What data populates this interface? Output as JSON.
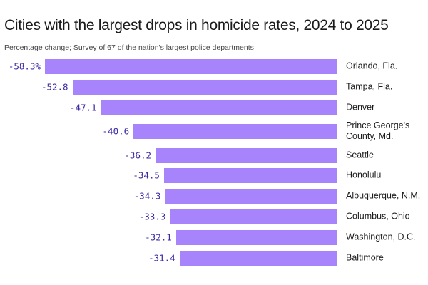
{
  "chart_data": {
    "type": "bar",
    "orientation": "horizontal",
    "title": "Cities with the largest drops in homicide rates, 2024 to 2025",
    "subtitle": "Percentage change; Survey of 67 of the nation's largest police departments",
    "categories": [
      "Orlando, Fla.",
      "Tampa, Fla.",
      "Denver",
      "Prince George's County, Md.",
      "Seattle",
      "Honolulu",
      "Albuquerque, N.M.",
      "Columbus, Ohio",
      "Washington, D.C.",
      "Baltimore"
    ],
    "values": [
      -58.3,
      -52.8,
      -47.1,
      -40.6,
      -36.2,
      -34.5,
      -34.3,
      -33.3,
      -32.1,
      -31.4
    ],
    "value_labels": [
      "-58.3%",
      "-52.8",
      "-47.1",
      "-40.6",
      "-36.2",
      "-34.5",
      "-34.3",
      "-33.3",
      "-32.1",
      "-31.4"
    ],
    "color": "#a784fb"
  }
}
